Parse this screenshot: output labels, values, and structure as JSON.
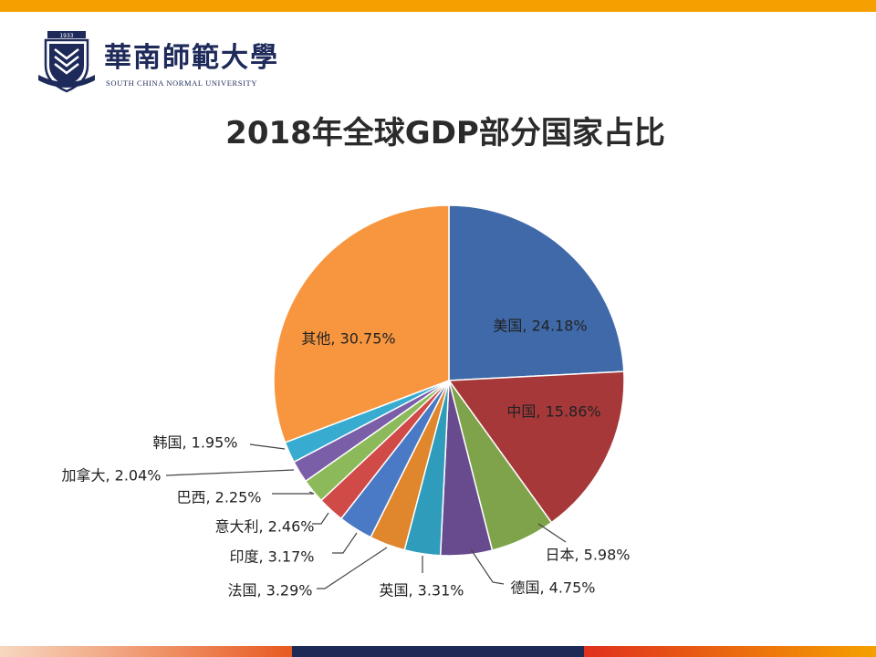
{
  "header": {
    "accent_color": "#f5a000",
    "logo": {
      "name_cn": "華南師範大學",
      "name_en": "SOUTH CHINA NORMAL UNIVERSITY",
      "year": "1933",
      "icon": "university-emblem-icon"
    }
  },
  "chart_data": {
    "type": "pie",
    "title": "2018年全球GDP部分国家占比",
    "slices": [
      {
        "label": "美国",
        "value": 24.18,
        "text": "美国, 24.18%",
        "color": "#3f69a8"
      },
      {
        "label": "中国",
        "value": 15.86,
        "text": "中国, 15.86%",
        "color": "#a7383a"
      },
      {
        "label": "日本",
        "value": 5.98,
        "text": "日本, 5.98%",
        "color": "#7fa34a"
      },
      {
        "label": "德国",
        "value": 4.75,
        "text": "德国, 4.75%",
        "color": "#684b8e"
      },
      {
        "label": "英国",
        "value": 3.31,
        "text": "英国, 3.31%",
        "color": "#2f9cbc"
      },
      {
        "label": "法国",
        "value": 3.29,
        "text": "法国, 3.29%",
        "color": "#e0862c"
      },
      {
        "label": "印度",
        "value": 3.17,
        "text": "印度, 3.17%",
        "color": "#4a7ac5"
      },
      {
        "label": "意大利",
        "value": 2.46,
        "text": "意大利, 2.46%",
        "color": "#d04a48"
      },
      {
        "label": "巴西",
        "value": 2.25,
        "text": "巴西, 2.25%",
        "color": "#8cba5a"
      },
      {
        "label": "加拿大",
        "value": 2.04,
        "text": "加拿大, 2.04%",
        "color": "#7b5ea8"
      },
      {
        "label": "韩国",
        "value": 1.95,
        "text": "韩国, 1.95%",
        "color": "#38acd0"
      },
      {
        "label": "其他",
        "value": 30.75,
        "text": "其他, 30.75%",
        "color": "#f7963f"
      }
    ]
  },
  "footer": {
    "colors": [
      "#e85a20",
      "#1c2a55",
      "#f5a000"
    ]
  }
}
